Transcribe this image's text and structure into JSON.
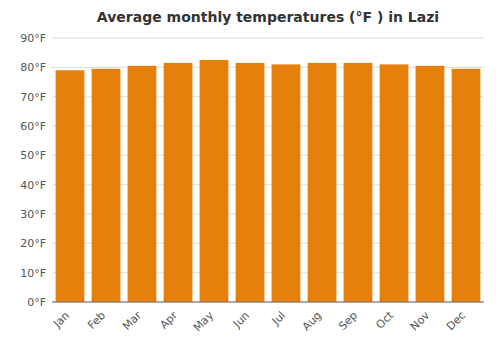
{
  "chart_data": {
    "type": "bar",
    "title": "Average monthly temperatures (°F ) in Lazi",
    "categories": [
      "Jan",
      "Feb",
      "Mar",
      "Apr",
      "May",
      "Jun",
      "Jul",
      "Aug",
      "Sep",
      "Oct",
      "Nov",
      "Dec"
    ],
    "values": [
      79,
      79.5,
      80.5,
      81.5,
      82.5,
      81.5,
      81,
      81.5,
      81.5,
      81,
      80.5,
      79.5
    ],
    "color": "#E6800D",
    "ylim": [
      0,
      90
    ],
    "yticks": [
      {
        "value": 0,
        "label": "0°F"
      },
      {
        "value": 10,
        "label": "10°F"
      },
      {
        "value": 20,
        "label": "20°F"
      },
      {
        "value": 30,
        "label": "30°F"
      },
      {
        "value": 40,
        "label": "40°F"
      },
      {
        "value": 50,
        "label": "50°F"
      },
      {
        "value": 60,
        "label": "60°F"
      },
      {
        "value": 70,
        "label": "70°F"
      },
      {
        "value": 80,
        "label": "80°F"
      },
      {
        "value": 90,
        "label": "90°F"
      }
    ],
    "grid": true
  }
}
